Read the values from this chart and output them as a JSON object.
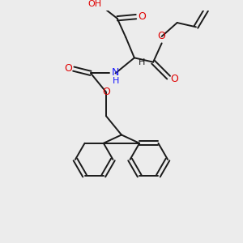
{
  "bg_color": "#ececec",
  "atom_colors": {
    "C": "#1a1a1a",
    "O": "#e00000",
    "N": "#1a1aff",
    "H": "#1a1a1a"
  },
  "bond_color": "#1a1a1a",
  "bond_width": 1.4,
  "figsize": [
    3.0,
    3.0
  ],
  "dpi": 100
}
